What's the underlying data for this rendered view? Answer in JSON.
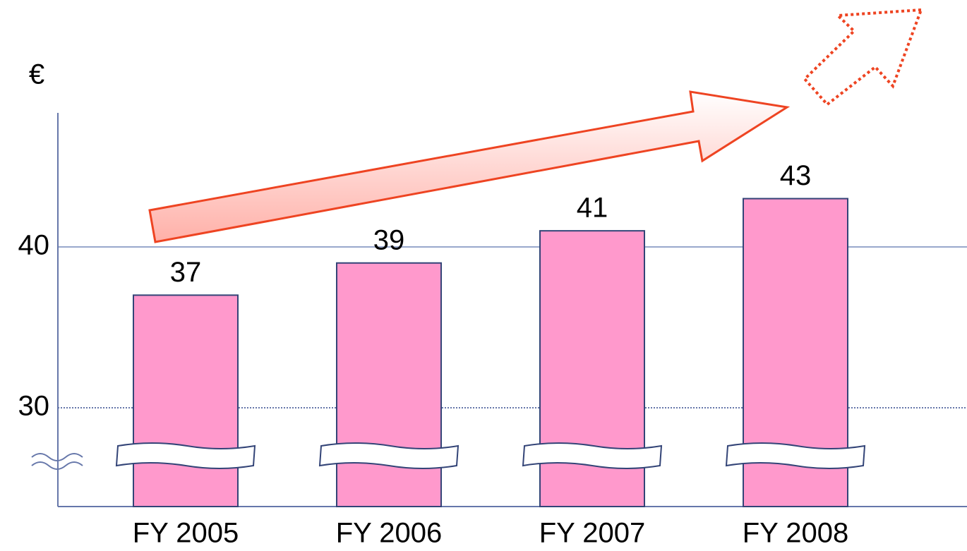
{
  "chart_data": {
    "type": "bar",
    "y_label": "€",
    "categories": [
      "FY 2005",
      "FY 2006",
      "FY 2007",
      "FY 2008"
    ],
    "values": [
      37,
      39,
      41,
      43
    ],
    "color": "#ff99cc",
    "ylim": [
      23.86,
      48.33
    ],
    "yticks": [
      30,
      40
    ],
    "grid": true
  }
}
